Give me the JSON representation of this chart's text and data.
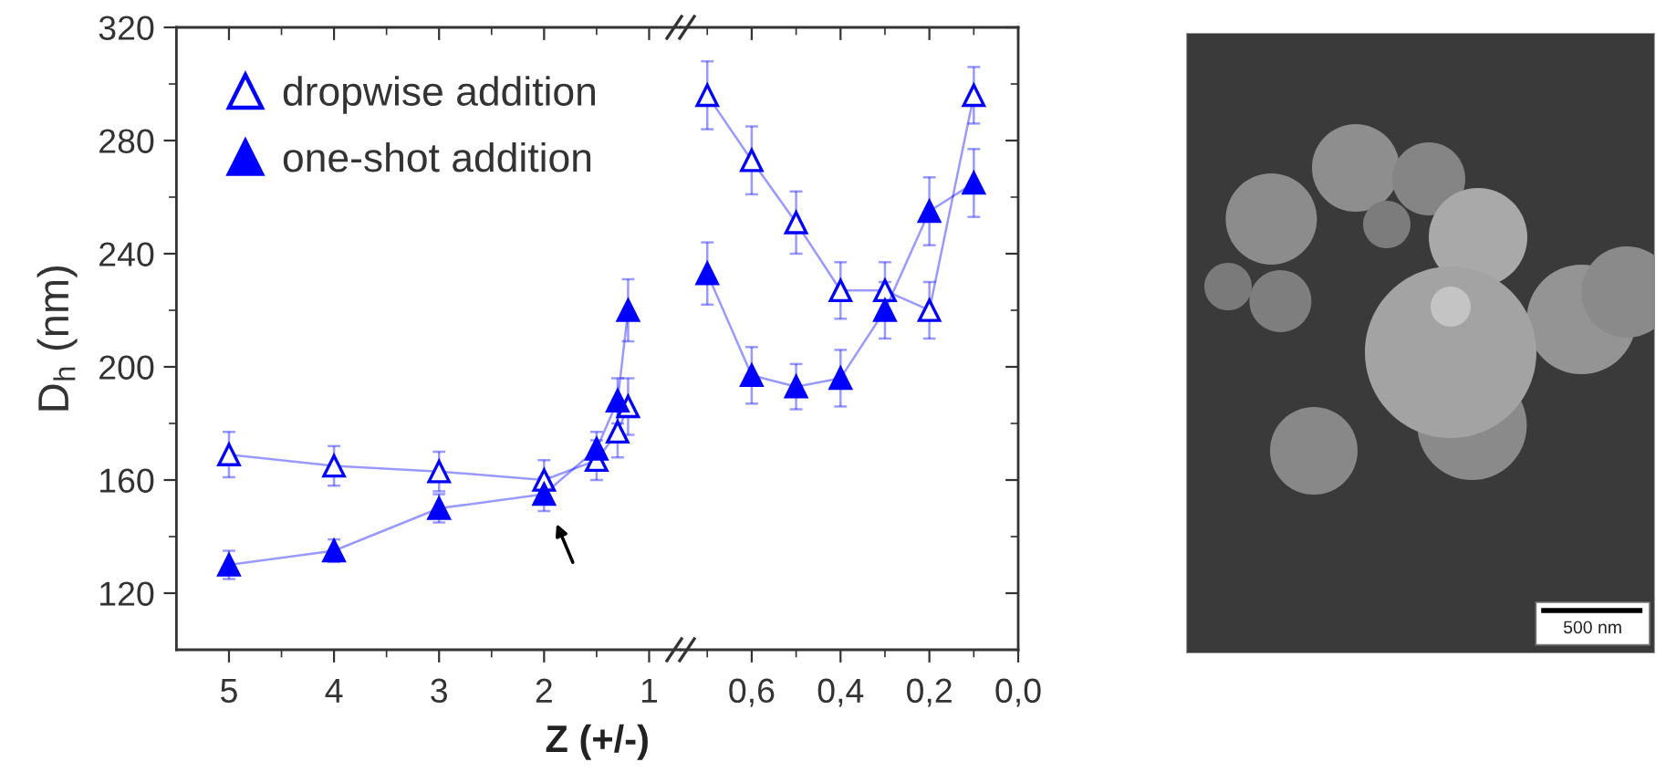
{
  "chart_data": [
    {
      "type": "line",
      "ylabel": "D$_{h}$ (nm)",
      "xlabel": "Z (+/-)",
      "marker": "triangle",
      "line_style": "solid",
      "legend": "top left",
      "x": [
        5,
        4,
        3,
        2,
        1.5,
        1.3,
        1.2
      ],
      "xlim": [
        5.5,
        0.7
      ],
      "xticks": [
        5,
        {
          "value": 4.5,
          "label": null
        },
        4,
        {
          "value": 3.5,
          "label": null
        },
        3,
        {
          "value": 2.5,
          "label": null
        },
        2,
        {
          "value": 1.5,
          "label": null
        },
        1
      ],
      "ylim": [
        100,
        320
      ],
      "yticks": [
        120,
        {
          "value": 140,
          "label": null
        },
        160,
        {
          "value": 180,
          "label": null
        },
        200,
        {
          "value": 220,
          "label": null
        },
        240,
        {
          "value": 260,
          "label": null
        },
        280,
        {
          "value": 300,
          "label": null
        },
        320
      ],
      "series": [
        {
          "name": "dropwise addition",
          "color": "#0000ff",
          "values": [
            169,
            165,
            163,
            160,
            167,
            177,
            186
          ],
          "errors": [
            8,
            7,
            7,
            7,
            7,
            9,
            10
          ]
        },
        {
          "name": "one-shot addition",
          "color": "#0000ff",
          "values": [
            130,
            135,
            150,
            155,
            171,
            188,
            220
          ],
          "errors": [
            5,
            4,
            5,
            6,
            6,
            8,
            11
          ]
        }
      ]
    },
    {
      "type": "line",
      "marker": "triangle",
      "line_style": "solid",
      "tick_labels": "x",
      "x": [
        0.7,
        0.6,
        0.5,
        0.4,
        0.3,
        0.2,
        0.1
      ],
      "xlim": [
        0.76,
        0.0
      ],
      "xticks": [
        {
          "value": 0.7,
          "label": null
        },
        {
          "value": 0.6,
          "label": "0,6"
        },
        {
          "value": 0.5,
          "label": null
        },
        {
          "value": 0.4,
          "label": "0,4"
        },
        {
          "value": 0.3,
          "label": null
        },
        {
          "value": 0.2,
          "label": "0,2"
        },
        {
          "value": 0.1,
          "label": null
        },
        {
          "value": 0.0,
          "label": "0,0"
        }
      ],
      "ylim": [
        100,
        320
      ],
      "yticks": [
        120,
        {
          "value": 140,
          "label": null
        },
        160,
        {
          "value": 180,
          "label": null
        },
        200,
        {
          "value": 220,
          "label": null
        },
        240,
        {
          "value": 260,
          "label": null
        },
        280,
        {
          "value": 300,
          "label": null
        },
        320
      ],
      "series": [
        {
          "color": "#0000ff",
          "values": [
            296,
            273,
            251,
            227,
            227,
            220,
            296
          ],
          "errors": [
            12,
            12,
            11,
            10,
            10,
            10,
            10
          ]
        },
        {
          "color": "#0000ff",
          "values": [
            233,
            197,
            193,
            196,
            220,
            255,
            265
          ],
          "errors": [
            11,
            10,
            8,
            10,
            10,
            12,
            12
          ]
        }
      ]
    },
    {
      "type": "other",
      "annotations": [
        "500 nm"
      ]
    }
  ]
}
